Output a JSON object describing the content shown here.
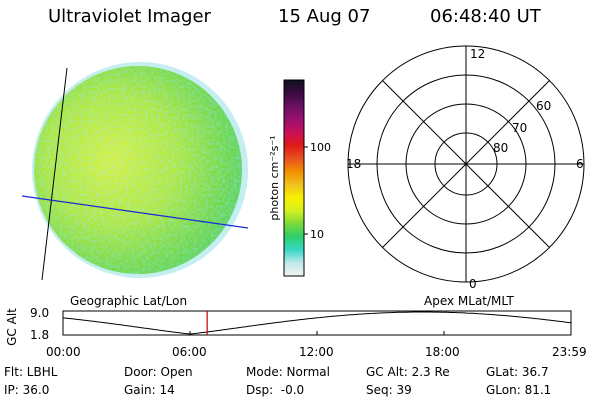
{
  "header": {
    "title": "Ultraviolet Imager",
    "date": "15 Aug 07",
    "time": "06:48:40 UT"
  },
  "colorbar": {
    "unit_label": "photon cm⁻²s⁻¹",
    "ticks": [
      "100",
      "10"
    ],
    "stops": [
      "#f2f2f2",
      "#bfe8e8",
      "#38d8c8",
      "#2ccf6a",
      "#7cd93a",
      "#d4f020",
      "#f8f000",
      "#f0c020",
      "#f09000",
      "#e85020",
      "#e01818",
      "#c8105a",
      "#9a1070",
      "#6a1060",
      "#3a0a40",
      "#101020"
    ]
  },
  "image_panel": {
    "caption": "Geographic Lat/Lon"
  },
  "polar_plot": {
    "caption": "Apex MLat/MLT",
    "mlt_labels": {
      "top": "12",
      "bottom": "0",
      "left": "18",
      "right": "6"
    },
    "lat_labels": [
      "60",
      "70",
      "80"
    ]
  },
  "altitude_plot": {
    "ylabel": "GC Alt",
    "yticks": [
      "9.0",
      "1.8"
    ],
    "xticks": [
      "00:00",
      "06:00",
      "12:00",
      "18:00",
      "23:59"
    ],
    "current_time_hours": 6.81,
    "orbit_min_time_hours": 6.0,
    "colors": {
      "marker": "#c00000"
    }
  },
  "footer": {
    "rows": [
      [
        "Flt: LBHL",
        "Door: Open",
        "Mode: Normal",
        "GC Alt: 2.3 Re",
        "GLat: 36.7"
      ],
      [
        "IP: 36.0",
        "Gain: 14",
        "Dsp:  -0.0",
        "Seq: 39",
        "GLon: 81.1"
      ]
    ]
  }
}
